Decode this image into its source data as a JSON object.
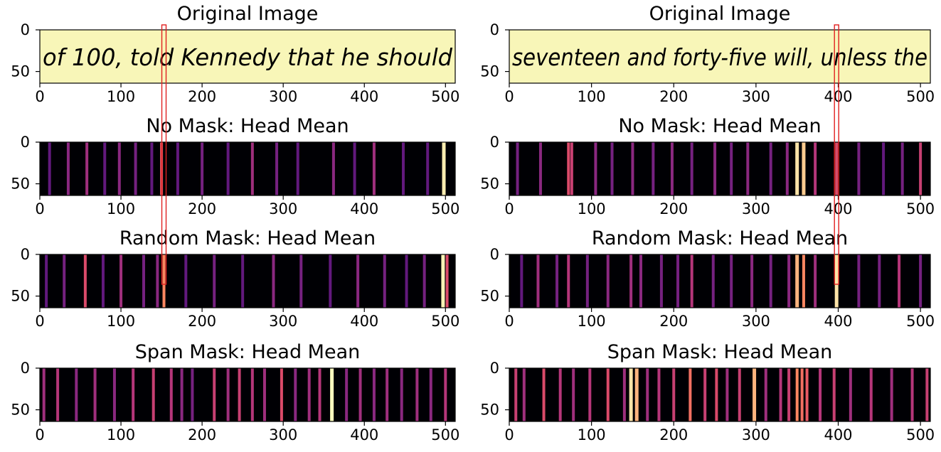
{
  "figure": {
    "columns": [
      {
        "image_panel": {
          "title": "Original Image",
          "handwriting": "of 100, told Kennedy that he should",
          "xlim": [
            0,
            512
          ],
          "ylim": [
            64,
            0
          ],
          "xticks": [
            0,
            100,
            200,
            300,
            400,
            500
          ],
          "yticks": [
            0,
            50
          ],
          "highlight_x": 153
        },
        "highlight_band_x": 153
      },
      {
        "image_panel": {
          "title": "Original Image",
          "handwriting": "seventeen and forty-five will, unless the",
          "xlim": [
            0,
            512
          ],
          "ylim": [
            64,
            0
          ],
          "xticks": [
            0,
            100,
            200,
            300,
            400,
            500
          ],
          "yticks": [
            0,
            50
          ],
          "highlight_x": 398
        },
        "highlight_band_x": 398
      }
    ],
    "colormap": "magma",
    "colors": {
      "image_background": "#f8f6b8",
      "ink": "#8b1a52",
      "highlight": "#e02020"
    }
  },
  "chart_data": [
    {
      "type": "heatmap",
      "title": "No Mask: Head Mean",
      "xlim": [
        0,
        512
      ],
      "ylim": [
        64,
        0
      ],
      "xticks": [
        0,
        100,
        200,
        300,
        400,
        500
      ],
      "yticks": [
        0,
        50
      ],
      "attention_peaks": [
        {
          "x": 12,
          "v": 0.3
        },
        {
          "x": 35,
          "v": 0.4
        },
        {
          "x": 58,
          "v": 0.45
        },
        {
          "x": 80,
          "v": 0.3
        },
        {
          "x": 98,
          "v": 0.4
        },
        {
          "x": 118,
          "v": 0.35
        },
        {
          "x": 138,
          "v": 0.3
        },
        {
          "x": 150,
          "v": 0.65
        },
        {
          "x": 170,
          "v": 0.3
        },
        {
          "x": 200,
          "v": 0.35
        },
        {
          "x": 232,
          "v": 0.3
        },
        {
          "x": 262,
          "v": 0.45
        },
        {
          "x": 292,
          "v": 0.35
        },
        {
          "x": 318,
          "v": 0.3
        },
        {
          "x": 362,
          "v": 0.4
        },
        {
          "x": 388,
          "v": 0.3
        },
        {
          "x": 412,
          "v": 0.45
        },
        {
          "x": 448,
          "v": 0.3
        },
        {
          "x": 478,
          "v": 0.3
        },
        {
          "x": 498,
          "v": 0.97
        }
      ]
    },
    {
      "type": "heatmap",
      "title": "Random Mask: Head Mean",
      "xlim": [
        0,
        512
      ],
      "ylim": [
        64,
        0
      ],
      "xticks": [
        0,
        100,
        200,
        300,
        400,
        500
      ],
      "yticks": [
        0,
        50
      ],
      "attention_peaks": [
        {
          "x": 8,
          "v": 0.3
        },
        {
          "x": 30,
          "v": 0.35
        },
        {
          "x": 56,
          "v": 0.6
        },
        {
          "x": 78,
          "v": 0.3
        },
        {
          "x": 100,
          "v": 0.45
        },
        {
          "x": 128,
          "v": 0.35
        },
        {
          "x": 145,
          "v": 0.4
        },
        {
          "x": 153,
          "v": 0.75
        },
        {
          "x": 180,
          "v": 0.3
        },
        {
          "x": 215,
          "v": 0.35
        },
        {
          "x": 250,
          "v": 0.3
        },
        {
          "x": 288,
          "v": 0.4
        },
        {
          "x": 322,
          "v": 0.35
        },
        {
          "x": 358,
          "v": 0.3
        },
        {
          "x": 392,
          "v": 0.4
        },
        {
          "x": 425,
          "v": 0.35
        },
        {
          "x": 452,
          "v": 0.3
        },
        {
          "x": 474,
          "v": 0.35
        },
        {
          "x": 497,
          "v": 0.98
        },
        {
          "x": 502,
          "v": 0.6
        }
      ]
    },
    {
      "type": "heatmap",
      "title": "Span Mask: Head Mean",
      "xlim": [
        0,
        512
      ],
      "ylim": [
        64,
        0
      ],
      "xticks": [
        0,
        100,
        200,
        300,
        400,
        500
      ],
      "yticks": [
        0,
        50
      ],
      "attention_peaks": [
        {
          "x": 5,
          "v": 0.45
        },
        {
          "x": 22,
          "v": 0.5
        },
        {
          "x": 45,
          "v": 0.4
        },
        {
          "x": 68,
          "v": 0.45
        },
        {
          "x": 92,
          "v": 0.4
        },
        {
          "x": 115,
          "v": 0.5
        },
        {
          "x": 140,
          "v": 0.55
        },
        {
          "x": 162,
          "v": 0.5
        },
        {
          "x": 175,
          "v": 0.4
        },
        {
          "x": 188,
          "v": 0.35
        },
        {
          "x": 215,
          "v": 0.55
        },
        {
          "x": 232,
          "v": 0.45
        },
        {
          "x": 246,
          "v": 0.55
        },
        {
          "x": 262,
          "v": 0.5
        },
        {
          "x": 277,
          "v": 0.45
        },
        {
          "x": 298,
          "v": 0.6
        },
        {
          "x": 315,
          "v": 0.4
        },
        {
          "x": 332,
          "v": 0.45
        },
        {
          "x": 345,
          "v": 0.5
        },
        {
          "x": 360,
          "v": 1.0
        },
        {
          "x": 378,
          "v": 0.4
        },
        {
          "x": 395,
          "v": 0.45
        },
        {
          "x": 412,
          "v": 0.4
        },
        {
          "x": 428,
          "v": 0.45
        },
        {
          "x": 446,
          "v": 0.4
        },
        {
          "x": 465,
          "v": 0.45
        },
        {
          "x": 482,
          "v": 0.4
        },
        {
          "x": 500,
          "v": 0.5
        }
      ]
    },
    {
      "type": "heatmap",
      "title": "No Mask: Head Mean",
      "xlim": [
        0,
        512
      ],
      "ylim": [
        64,
        0
      ],
      "xticks": [
        0,
        100,
        200,
        300,
        400,
        500
      ],
      "yticks": [
        0,
        50
      ],
      "attention_peaks": [
        {
          "x": 10,
          "v": 0.35
        },
        {
          "x": 38,
          "v": 0.4
        },
        {
          "x": 72,
          "v": 0.6
        },
        {
          "x": 76,
          "v": 0.55
        },
        {
          "x": 105,
          "v": 0.4
        },
        {
          "x": 125,
          "v": 0.35
        },
        {
          "x": 150,
          "v": 0.4
        },
        {
          "x": 175,
          "v": 0.35
        },
        {
          "x": 198,
          "v": 0.4
        },
        {
          "x": 222,
          "v": 0.35
        },
        {
          "x": 250,
          "v": 0.4
        },
        {
          "x": 270,
          "v": 0.35
        },
        {
          "x": 290,
          "v": 0.4
        },
        {
          "x": 318,
          "v": 0.35
        },
        {
          "x": 338,
          "v": 0.4
        },
        {
          "x": 350,
          "v": 0.95
        },
        {
          "x": 358,
          "v": 0.9
        },
        {
          "x": 372,
          "v": 0.5
        },
        {
          "x": 398,
          "v": 0.6
        },
        {
          "x": 425,
          "v": 0.35
        },
        {
          "x": 455,
          "v": 0.3
        },
        {
          "x": 478,
          "v": 0.35
        },
        {
          "x": 500,
          "v": 0.55
        }
      ]
    },
    {
      "type": "heatmap",
      "title": "Random Mask: Head Mean",
      "xlim": [
        0,
        512
      ],
      "ylim": [
        64,
        0
      ],
      "xticks": [
        0,
        100,
        200,
        300,
        400,
        500
      ],
      "yticks": [
        0,
        50
      ],
      "attention_peaks": [
        {
          "x": 15,
          "v": 0.3
        },
        {
          "x": 35,
          "v": 0.45
        },
        {
          "x": 58,
          "v": 0.35
        },
        {
          "x": 72,
          "v": 0.5
        },
        {
          "x": 95,
          "v": 0.35
        },
        {
          "x": 120,
          "v": 0.4
        },
        {
          "x": 148,
          "v": 0.45
        },
        {
          "x": 160,
          "v": 0.4
        },
        {
          "x": 185,
          "v": 0.35
        },
        {
          "x": 205,
          "v": 0.35
        },
        {
          "x": 222,
          "v": 0.5
        },
        {
          "x": 248,
          "v": 0.35
        },
        {
          "x": 270,
          "v": 0.35
        },
        {
          "x": 295,
          "v": 0.4
        },
        {
          "x": 318,
          "v": 0.35
        },
        {
          "x": 340,
          "v": 0.4
        },
        {
          "x": 350,
          "v": 0.85
        },
        {
          "x": 358,
          "v": 0.75
        },
        {
          "x": 372,
          "v": 0.45
        },
        {
          "x": 398,
          "v": 0.95
        },
        {
          "x": 425,
          "v": 0.35
        },
        {
          "x": 450,
          "v": 0.35
        },
        {
          "x": 474,
          "v": 0.5
        },
        {
          "x": 500,
          "v": 0.35
        }
      ]
    },
    {
      "type": "heatmap",
      "title": "Span Mask: Head Mean",
      "xlim": [
        0,
        512
      ],
      "ylim": [
        64,
        0
      ],
      "xticks": [
        0,
        100,
        200,
        300,
        400,
        500
      ],
      "yticks": [
        0,
        50
      ],
      "attention_peaks": [
        {
          "x": 8,
          "v": 0.55
        },
        {
          "x": 18,
          "v": 0.45
        },
        {
          "x": 42,
          "v": 0.6
        },
        {
          "x": 62,
          "v": 0.5
        },
        {
          "x": 78,
          "v": 0.45
        },
        {
          "x": 98,
          "v": 0.5
        },
        {
          "x": 120,
          "v": 0.6
        },
        {
          "x": 140,
          "v": 0.45
        },
        {
          "x": 148,
          "v": 0.95
        },
        {
          "x": 155,
          "v": 0.85
        },
        {
          "x": 168,
          "v": 0.45
        },
        {
          "x": 182,
          "v": 0.5
        },
        {
          "x": 200,
          "v": 0.55
        },
        {
          "x": 220,
          "v": 0.7
        },
        {
          "x": 238,
          "v": 0.55
        },
        {
          "x": 252,
          "v": 0.6
        },
        {
          "x": 265,
          "v": 0.45
        },
        {
          "x": 280,
          "v": 0.55
        },
        {
          "x": 298,
          "v": 0.85
        },
        {
          "x": 312,
          "v": 0.45
        },
        {
          "x": 330,
          "v": 0.5
        },
        {
          "x": 340,
          "v": 0.55
        },
        {
          "x": 350,
          "v": 0.75
        },
        {
          "x": 356,
          "v": 0.7
        },
        {
          "x": 362,
          "v": 0.65
        },
        {
          "x": 378,
          "v": 0.5
        },
        {
          "x": 395,
          "v": 0.55
        },
        {
          "x": 415,
          "v": 0.45
        },
        {
          "x": 440,
          "v": 0.5
        },
        {
          "x": 465,
          "v": 0.45
        },
        {
          "x": 490,
          "v": 0.5
        },
        {
          "x": 508,
          "v": 0.55
        }
      ]
    }
  ]
}
